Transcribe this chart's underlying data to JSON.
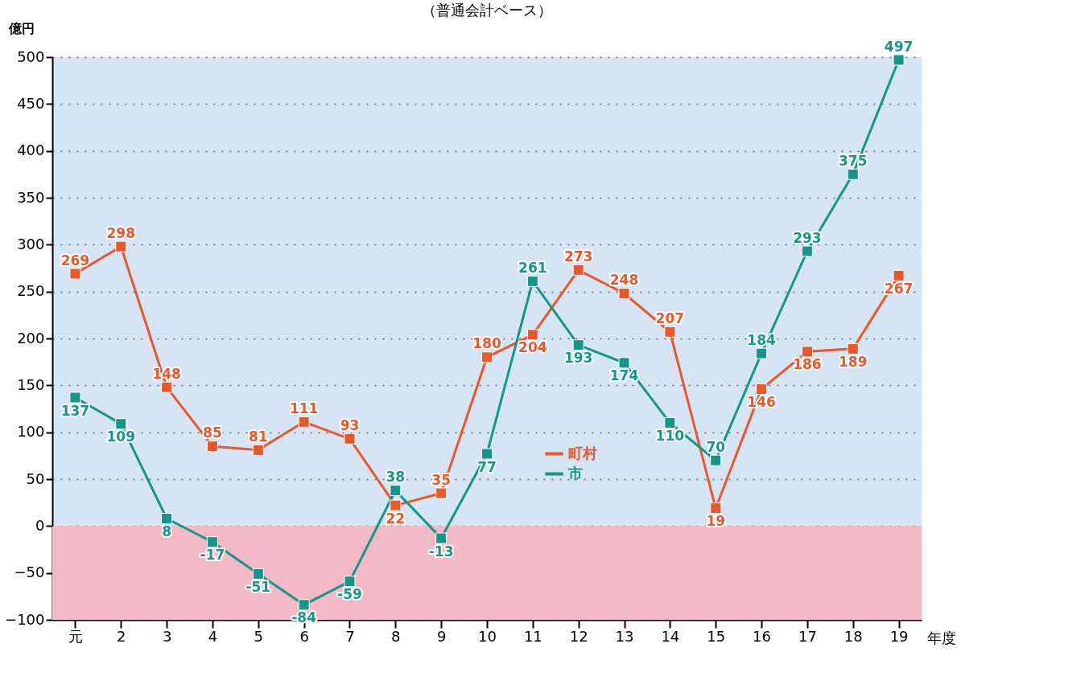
{
  "chart_data": {
    "type": "line",
    "subtitle": "（普通会計ベース）",
    "ylabel": "億円",
    "xlabel": "年度",
    "categories": [
      "元",
      "2",
      "3",
      "4",
      "5",
      "6",
      "7",
      "8",
      "9",
      "10",
      "11",
      "12",
      "13",
      "14",
      "15",
      "16",
      "17",
      "18",
      "19"
    ],
    "series": [
      {
        "name": "町村",
        "color": "#e8582a",
        "values": [
          269,
          298,
          148,
          85,
          81,
          111,
          93,
          22,
          35,
          180,
          204,
          273,
          248,
          207,
          19,
          146,
          186,
          189,
          267
        ]
      },
      {
        "name": "市",
        "color": "#16968a",
        "values": [
          137,
          109,
          8,
          -17,
          -51,
          -84,
          -59,
          38,
          -13,
          77,
          261,
          193,
          174,
          110,
          70,
          184,
          293,
          375,
          497
        ]
      }
    ],
    "ylim": [
      -100,
      500
    ],
    "yticks": [
      -100,
      -50,
      0,
      50,
      100,
      150,
      200,
      250,
      300,
      350,
      400,
      450,
      500
    ],
    "bands": [
      {
        "axis": "y",
        "from": -100,
        "to": 0,
        "color": "#f3b9c6"
      }
    ],
    "grid": "y",
    "legend": "bottom right",
    "marker": "square",
    "line_style": "solid",
    "data_labels": true
  }
}
